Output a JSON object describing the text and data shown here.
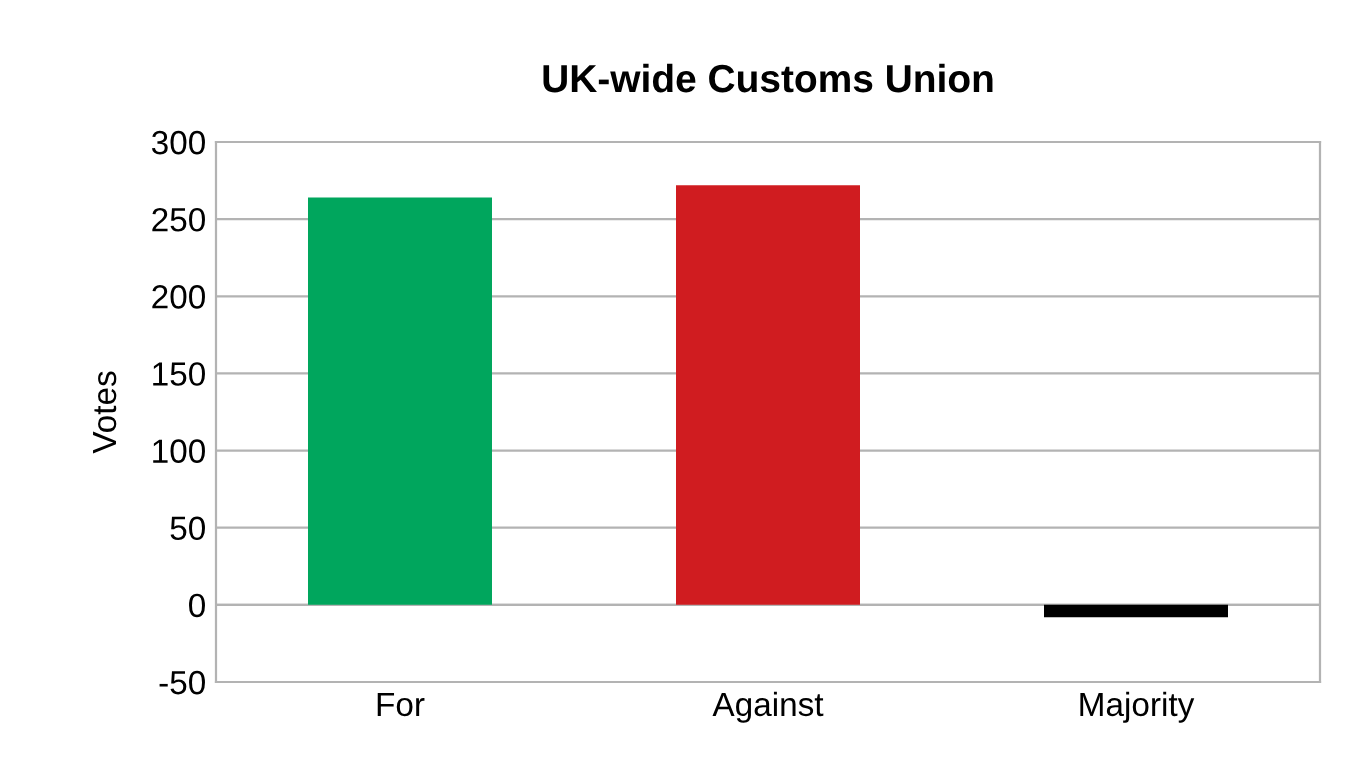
{
  "chart_data": {
    "type": "bar",
    "title": "UK-wide Customs Union",
    "ylabel": "Votes",
    "categories": [
      "For",
      "Against",
      "Majority"
    ],
    "values": [
      264,
      272,
      -8
    ],
    "colors": [
      "#00a65d",
      "#d01c20",
      "#000000"
    ],
    "ylim": [
      -50,
      300
    ],
    "yticks": [
      -50,
      0,
      50,
      100,
      150,
      200,
      250,
      300
    ],
    "grid": "y"
  }
}
